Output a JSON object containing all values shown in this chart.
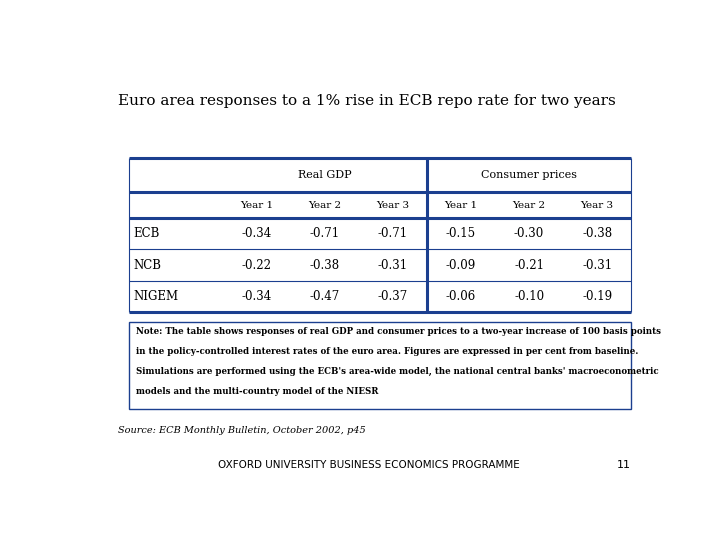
{
  "title": "Euro area responses to a 1% rise in ECB repo rate for two years",
  "rows": [
    {
      "label": "ECB",
      "gdp": [
        "-0.34",
        "-0.71",
        "-0.71"
      ],
      "cp": [
        "-0.15",
        "-0.30",
        "-0.38"
      ]
    },
    {
      "label": "NCB",
      "gdp": [
        "-0.22",
        "-0.38",
        "-0.31"
      ],
      "cp": [
        "-0.09",
        "-0.21",
        "-0.31"
      ]
    },
    {
      "label": "NIGEM",
      "gdp": [
        "-0.34",
        "-0.47",
        "-0.37"
      ],
      "cp": [
        "-0.06",
        "-0.10",
        "-0.19"
      ]
    }
  ],
  "note_line1": "Note: The table shows responses of real GDP and consumer prices to a two-year increase of 100 basis points",
  "note_line2": "in the policy-controlled interest rates of the euro area. Figures are expressed in per cent from baseline.",
  "note_line3": "Simulations are performed using the ECB's area-wide model, the national central banks' macroeconometric",
  "note_line4": "models and the multi-country model of the NIESR",
  "source": "Source: ECB Monthly Bulletin, October 2002, p45",
  "footer": "OXFORD UNIVERSITY BUSINESS ECONOMICS PROGRAMME",
  "page": "11",
  "blue": "#1B3F8F",
  "bg": "#FFFFFF",
  "text_color": "#000000"
}
